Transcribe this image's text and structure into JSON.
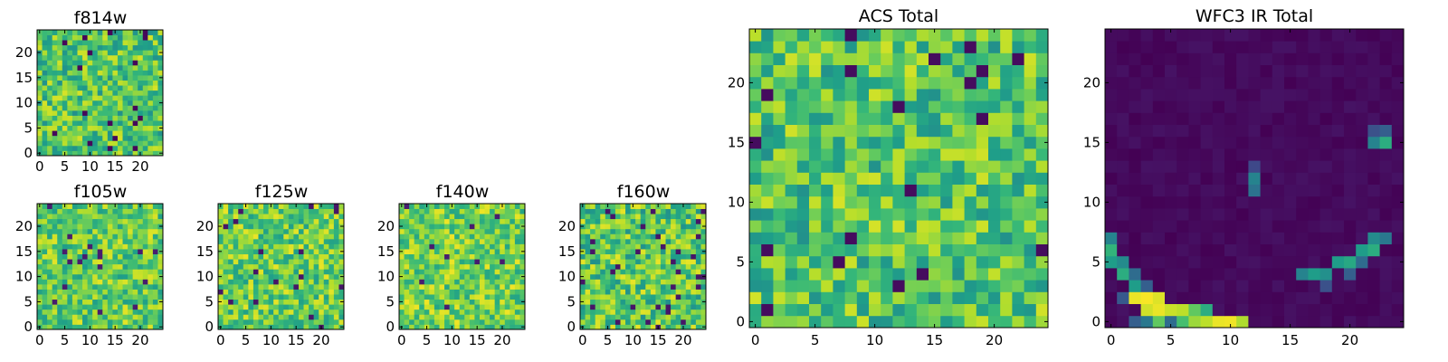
{
  "figure": {
    "background": "#ffffff"
  },
  "colormap": {
    "name": "viridis",
    "stops": [
      "#440154",
      "#482878",
      "#3e4989",
      "#31688e",
      "#26828e",
      "#1f9e89",
      "#35b779",
      "#6ece58",
      "#b5de2b",
      "#fde725"
    ]
  },
  "chart_data": [
    {
      "id": "f814w",
      "type": "heatmap",
      "title": "f814w",
      "grid_size": 25,
      "extent": [
        -0.5,
        24.5
      ],
      "xticks": [
        0,
        5,
        10,
        15,
        20
      ],
      "yticks": [
        0,
        5,
        10,
        15,
        20
      ],
      "pattern": "noise",
      "noise": {
        "low": 0.5,
        "high": 0.94,
        "outlier_rate": 0.035,
        "outlier_value": 0.02,
        "seed": 11
      }
    },
    {
      "id": "f105w",
      "type": "heatmap",
      "title": "f105w",
      "grid_size": 25,
      "extent": [
        -0.5,
        24.5
      ],
      "xticks": [
        0,
        5,
        10,
        15,
        20
      ],
      "yticks": [
        0,
        5,
        10,
        15,
        20
      ],
      "pattern": "noise",
      "noise": {
        "low": 0.55,
        "high": 0.96,
        "outlier_rate": 0.025,
        "outlier_value": 0.08,
        "seed": 23
      }
    },
    {
      "id": "f125w",
      "type": "heatmap",
      "title": "f125w",
      "grid_size": 25,
      "extent": [
        -0.5,
        24.5
      ],
      "xticks": [
        0,
        5,
        10,
        15,
        20
      ],
      "yticks": [
        0,
        5,
        10,
        15,
        20
      ],
      "pattern": "noise",
      "noise": {
        "low": 0.55,
        "high": 0.97,
        "outlier_rate": 0.025,
        "outlier_value": 0.06,
        "seed": 37
      }
    },
    {
      "id": "f140w",
      "type": "heatmap",
      "title": "f140w",
      "grid_size": 25,
      "extent": [
        -0.5,
        24.5
      ],
      "xticks": [
        0,
        5,
        10,
        15,
        20
      ],
      "yticks": [
        0,
        5,
        10,
        15,
        20
      ],
      "pattern": "noise",
      "noise": {
        "low": 0.58,
        "high": 0.98,
        "outlier_rate": 0.02,
        "outlier_value": 0.08,
        "seed": 53
      }
    },
    {
      "id": "f160w",
      "type": "heatmap",
      "title": "f160w",
      "grid_size": 25,
      "extent": [
        -0.5,
        24.5
      ],
      "xticks": [
        0,
        5,
        10,
        15,
        20
      ],
      "yticks": [
        0,
        5,
        10,
        15,
        20
      ],
      "pattern": "noise",
      "noise": {
        "low": 0.5,
        "high": 0.97,
        "outlier_rate": 0.04,
        "outlier_value": 0.06,
        "seed": 71
      }
    },
    {
      "id": "acs_total",
      "type": "heatmap",
      "title": "ACS Total",
      "grid_size": 25,
      "extent": [
        -0.5,
        24.5
      ],
      "xticks": [
        0,
        5,
        10,
        15,
        20
      ],
      "yticks": [
        0,
        5,
        10,
        15,
        20
      ],
      "pattern": "noise",
      "noise": {
        "low": 0.5,
        "high": 0.94,
        "outlier_rate": 0.03,
        "outlier_value": 0.03,
        "seed": 89
      }
    },
    {
      "id": "wfc3_ir_total",
      "type": "heatmap",
      "title": "WFC3 IR Total",
      "grid_size": 25,
      "extent": [
        -0.5,
        24.5
      ],
      "xticks": [
        0,
        5,
        10,
        15,
        20
      ],
      "yticks": [
        0,
        5,
        10,
        15,
        20
      ],
      "pattern": "arc",
      "background_range": [
        0.0,
        0.05
      ],
      "features": [
        {
          "x": 2,
          "y": 2,
          "value": 0.97
        },
        {
          "x": 3,
          "y": 2,
          "value": 0.99
        },
        {
          "x": 4,
          "y": 2,
          "value": 0.95
        },
        {
          "x": 3,
          "y": 1,
          "value": 0.93
        },
        {
          "x": 4,
          "y": 1,
          "value": 0.97
        },
        {
          "x": 5,
          "y": 1,
          "value": 0.92
        },
        {
          "x": 6,
          "y": 1,
          "value": 0.9
        },
        {
          "x": 7,
          "y": 1,
          "value": 0.75
        },
        {
          "x": 8,
          "y": 1,
          "value": 0.62
        },
        {
          "x": 9,
          "y": 0,
          "value": 0.97
        },
        {
          "x": 10,
          "y": 0,
          "value": 0.98
        },
        {
          "x": 11,
          "y": 0,
          "value": 0.88
        },
        {
          "x": 5,
          "y": 0,
          "value": 0.35
        },
        {
          "x": 6,
          "y": 0,
          "value": 0.7
        },
        {
          "x": 7,
          "y": 0,
          "value": 0.85
        },
        {
          "x": 8,
          "y": 0,
          "value": 0.9
        },
        {
          "x": 2,
          "y": 0,
          "value": 0.3
        },
        {
          "x": 3,
          "y": 0,
          "value": 0.4
        },
        {
          "x": 4,
          "y": 0,
          "value": 0.75
        },
        {
          "x": 1,
          "y": 2,
          "value": 0.28
        },
        {
          "x": 2,
          "y": 3,
          "value": 0.55
        },
        {
          "x": 1,
          "y": 4,
          "value": 0.62
        },
        {
          "x": 0,
          "y": 5,
          "value": 0.55
        },
        {
          "x": 1,
          "y": 5,
          "value": 0.48
        },
        {
          "x": 0,
          "y": 6,
          "value": 0.65
        },
        {
          "x": 0,
          "y": 7,
          "value": 0.45
        },
        {
          "x": 2,
          "y": 4,
          "value": 0.35
        },
        {
          "x": 3,
          "y": 3,
          "value": 0.3
        },
        {
          "x": 16,
          "y": 4,
          "value": 0.45
        },
        {
          "x": 17,
          "y": 4,
          "value": 0.55
        },
        {
          "x": 18,
          "y": 4,
          "value": 0.5
        },
        {
          "x": 19,
          "y": 5,
          "value": 0.55
        },
        {
          "x": 20,
          "y": 5,
          "value": 0.6
        },
        {
          "x": 21,
          "y": 6,
          "value": 0.55
        },
        {
          "x": 22,
          "y": 6,
          "value": 0.62
        },
        {
          "x": 22,
          "y": 7,
          "value": 0.48
        },
        {
          "x": 23,
          "y": 7,
          "value": 0.4
        },
        {
          "x": 18,
          "y": 3,
          "value": 0.25
        },
        {
          "x": 20,
          "y": 4,
          "value": 0.3
        },
        {
          "x": 21,
          "y": 5,
          "value": 0.35
        },
        {
          "x": 22,
          "y": 15,
          "value": 0.45
        },
        {
          "x": 22,
          "y": 16,
          "value": 0.25
        },
        {
          "x": 23,
          "y": 15,
          "value": 0.62
        },
        {
          "x": 23,
          "y": 16,
          "value": 0.3
        },
        {
          "x": 12,
          "y": 12,
          "value": 0.45
        },
        {
          "x": 12,
          "y": 11,
          "value": 0.38
        },
        {
          "x": 12,
          "y": 13,
          "value": 0.22
        }
      ]
    }
  ]
}
